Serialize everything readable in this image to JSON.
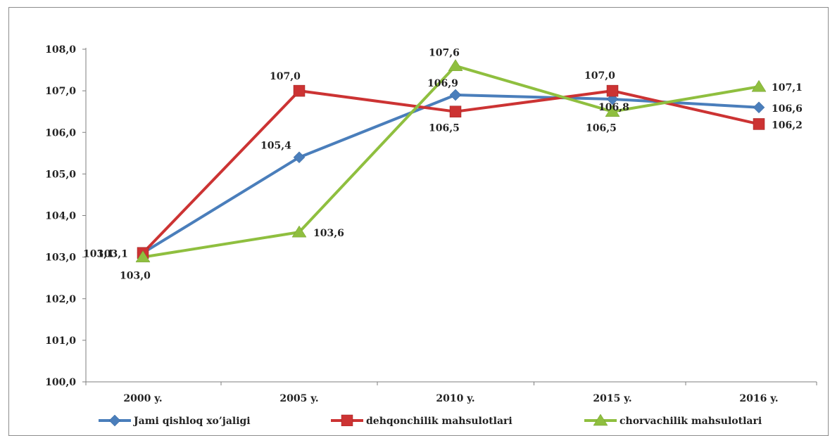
{
  "chart_data": {
    "type": "line",
    "categories": [
      "2000 y.",
      "2005 y.",
      "2010 y.",
      "2015 y.",
      "2016 y."
    ],
    "series": [
      {
        "name": "Jami qishloq xo’jaligi",
        "values": [
          103.1,
          105.4,
          106.9,
          106.8,
          106.6
        ],
        "labels": [
          "103,1",
          "105,4",
          "106,9",
          "106,8",
          "106,6"
        ],
        "color": "#4a7ebb",
        "marker": "diamond"
      },
      {
        "name": "dehqonchilik mahsulotlari",
        "values": [
          103.1,
          107.0,
          106.5,
          107.0,
          106.2
        ],
        "labels": [
          "103,1",
          "107,0",
          "106,5",
          "107,0",
          "106,2"
        ],
        "color": "#cc3333",
        "marker": "square"
      },
      {
        "name": "chorvachilik mahsulotlari",
        "values": [
          103.0,
          103.6,
          107.6,
          106.5,
          107.1
        ],
        "labels": [
          "103,0",
          "103,6",
          "107,6",
          "106,5",
          "107,1"
        ],
        "color": "#8fbf3f",
        "marker": "triangle"
      }
    ],
    "ylim": [
      100,
      108
    ],
    "yticks": [
      100,
      101,
      102,
      103,
      104,
      105,
      106,
      107,
      108
    ],
    "ytick_labels": [
      "100,0",
      "101,0",
      "102,0",
      "103,0",
      "104,0",
      "105,0",
      "106,0",
      "107,0",
      "108,0"
    ],
    "legend": "bottom",
    "grid": false
  }
}
